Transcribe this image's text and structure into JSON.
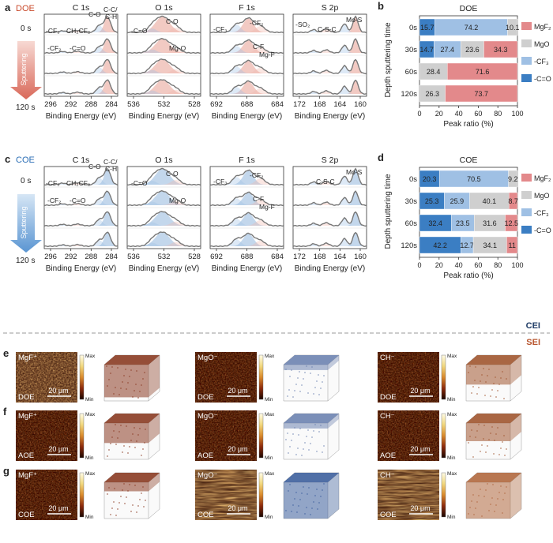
{
  "colors": {
    "mgf2": "#e3898b",
    "mgo": "#cfcfcf",
    "cf3": "#9fc0e4",
    "ceq_o": "#3b7ec3",
    "doe_label": "#c9492a",
    "coe_label": "#2a6db5",
    "cei": "#1f3c66",
    "sei": "#b8552e",
    "sputter_doe": "#e79a8e",
    "sputter_coe": "#8fb8e3",
    "fit_doe": "#e3897a",
    "fit_coe": "#7ba6d4"
  },
  "panel_a": {
    "letter": "a",
    "electrolyte": "DOE",
    "time_start": "0 s",
    "time_end": "120 s",
    "sputter_label": "Sputtering",
    "spectra": [
      {
        "title": "C 1s",
        "ticks": [
          "296",
          "292",
          "288",
          "284"
        ],
        "annotations": [
          "C-C/",
          "C-H",
          "C-O",
          "-CF₃",
          "CH₂CF₂",
          "-CF₂",
          "-C=O"
        ]
      },
      {
        "title": "O 1s",
        "ticks": [
          "536",
          "532",
          "528"
        ],
        "annotations": [
          "-C=O",
          "C-O",
          "Mg-O"
        ]
      },
      {
        "title": "F 1s",
        "ticks": [
          "692",
          "688",
          "684"
        ],
        "annotations": [
          "-CF₃",
          "-CF₂",
          "C-F",
          "Mg-F"
        ]
      },
      {
        "title": "S 2p",
        "ticks": [
          "172",
          "168",
          "164",
          "160"
        ],
        "annotations": [
          "-SO₂",
          "C-S-C",
          "Mo-S"
        ]
      }
    ],
    "xlabel": "Binding Energy (eV)"
  },
  "panel_c": {
    "letter": "c",
    "electrolyte": "COE",
    "time_start": "0 s",
    "time_end": "120 s",
    "sputter_label": "Sputtering",
    "spectra": [
      {
        "title": "C 1s",
        "ticks": [
          "296",
          "292",
          "288",
          "284"
        ],
        "annotations": [
          "C-C/",
          "C-H",
          "C-O",
          "-CF₃",
          "CH₂CF₂",
          "-CF₂",
          "-C=O"
        ]
      },
      {
        "title": "O 1s",
        "ticks": [
          "536",
          "532",
          "528"
        ],
        "annotations": [
          "-C=O",
          "C-O",
          "Mg-O"
        ]
      },
      {
        "title": "F 1s",
        "ticks": [
          "692",
          "688",
          "684"
        ],
        "annotations": [
          "-CF₃",
          "-CF₂",
          "C-F",
          "Mg-F"
        ]
      },
      {
        "title": "S 2p",
        "ticks": [
          "172",
          "168",
          "164",
          "160"
        ],
        "annotations": [
          "C-S-C",
          "Mo-S"
        ]
      }
    ],
    "xlabel": "Binding Energy (eV)"
  },
  "chart_data": [
    {
      "type": "bar",
      "orientation": "horizontal-stacked",
      "letter": "b",
      "title": "DOE",
      "categories": [
        "0s",
        "30s",
        "60s",
        "120s"
      ],
      "series": [
        {
          "name": "-C=O",
          "values": [
            15.7,
            14.7,
            0,
            0
          ]
        },
        {
          "name": "-CF₃",
          "values": [
            74.2,
            27.4,
            0,
            0
          ]
        },
        {
          "name": "MgO",
          "values": [
            10.1,
            23.6,
            28.4,
            26.3
          ]
        },
        {
          "name": "MgF₂",
          "values": [
            0,
            34.3,
            71.6,
            73.7
          ]
        }
      ],
      "xlabel": "Peak ratio (%)",
      "ylabel": "Depth sputtering time",
      "xlim": [
        0,
        100
      ],
      "xticks": [
        "0",
        "20",
        "40",
        "60",
        "80",
        "100"
      ],
      "legend": [
        "MgF₂",
        "MgO",
        "-CF₃",
        "-C=O"
      ],
      "legend_position": "right"
    },
    {
      "type": "bar",
      "orientation": "horizontal-stacked",
      "letter": "d",
      "title": "COE",
      "categories": [
        "0s",
        "30s",
        "60s",
        "120s"
      ],
      "series": [
        {
          "name": "-C=O",
          "values": [
            20.3,
            25.3,
            32.4,
            42.2
          ]
        },
        {
          "name": "-CF₃",
          "values": [
            70.5,
            25.9,
            23.5,
            12.7
          ]
        },
        {
          "name": "MgO",
          "values": [
            9.2,
            40.1,
            31.6,
            34.1
          ]
        },
        {
          "name": "MgF₂",
          "values": [
            0,
            8.7,
            12.5,
            11
          ]
        }
      ],
      "xlabel": "Peak ratio (%)",
      "ylabel": "Depth sputtering time",
      "xlim": [
        0,
        100
      ],
      "xticks": [
        "0",
        "20",
        "40",
        "60",
        "80",
        "100"
      ],
      "legend": [
        "MgF₂",
        "MgO",
        "-CF₃",
        "-C=O"
      ],
      "legend_position": "right"
    }
  ],
  "divider": {
    "top_label": "CEI",
    "bottom_label": "SEI"
  },
  "tof_sims": {
    "colorbar_max": "Max",
    "colorbar_min": "Min",
    "scale_bar": "20 μm",
    "species": [
      "MgF⁺",
      "MgO⁻",
      "CH⁻"
    ],
    "rows": [
      {
        "letter": "e",
        "electrolyte": "DOE"
      },
      {
        "letter": "f",
        "electrolyte": "AOE"
      },
      {
        "letter": "g",
        "electrolyte": "COE"
      }
    ]
  }
}
